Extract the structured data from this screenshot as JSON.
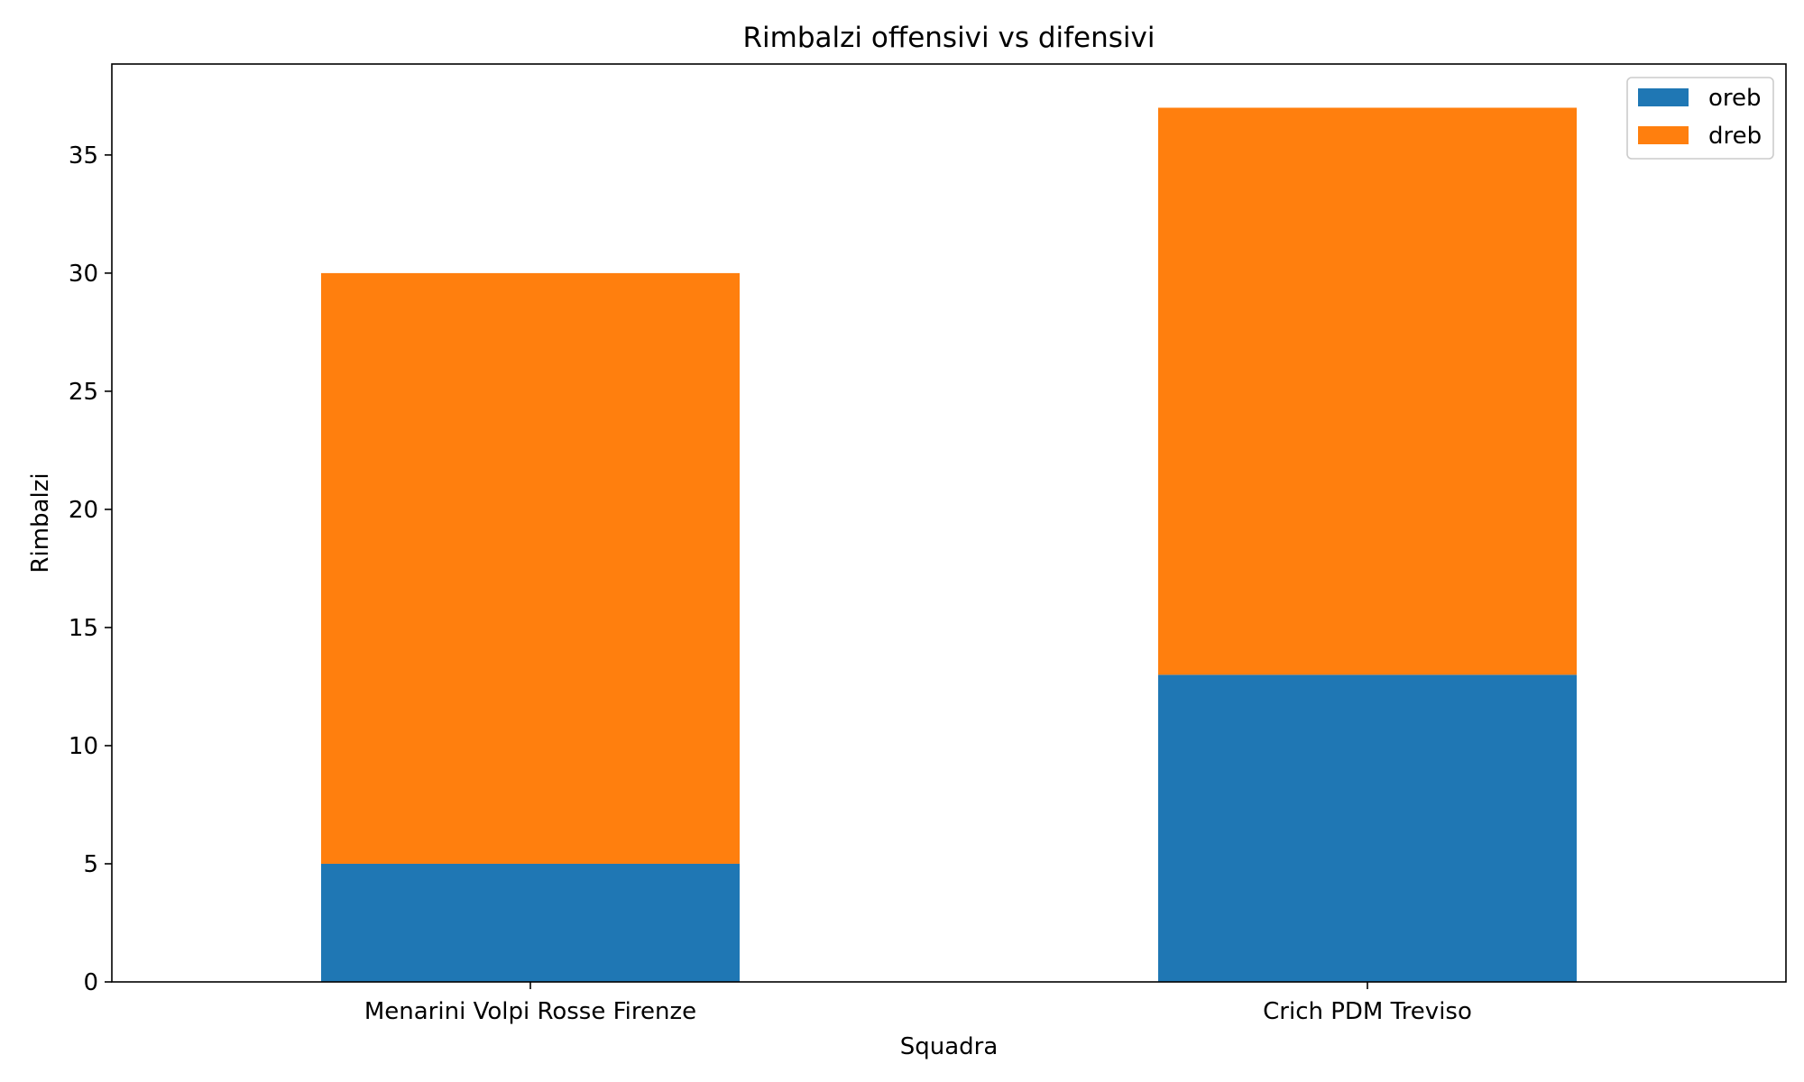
{
  "chart_data": {
    "type": "bar",
    "stacked": true,
    "title": "Rimbalzi offensivi vs difensivi",
    "xlabel": "Squadra",
    "ylabel": "Rimbalzi",
    "categories": [
      "Menarini Volpi Rosse Firenze",
      "Crich PDM Treviso"
    ],
    "series": [
      {
        "name": "oreb",
        "values": [
          5,
          13
        ],
        "color": "#1f77b4"
      },
      {
        "name": "dreb",
        "values": [
          25,
          24
        ],
        "color": "#ff7f0e"
      }
    ],
    "ylim": [
      0,
      38.85
    ],
    "yticks": [
      0,
      5,
      10,
      15,
      20,
      25,
      30,
      35
    ],
    "grid": false,
    "legend_position": "top-right"
  }
}
